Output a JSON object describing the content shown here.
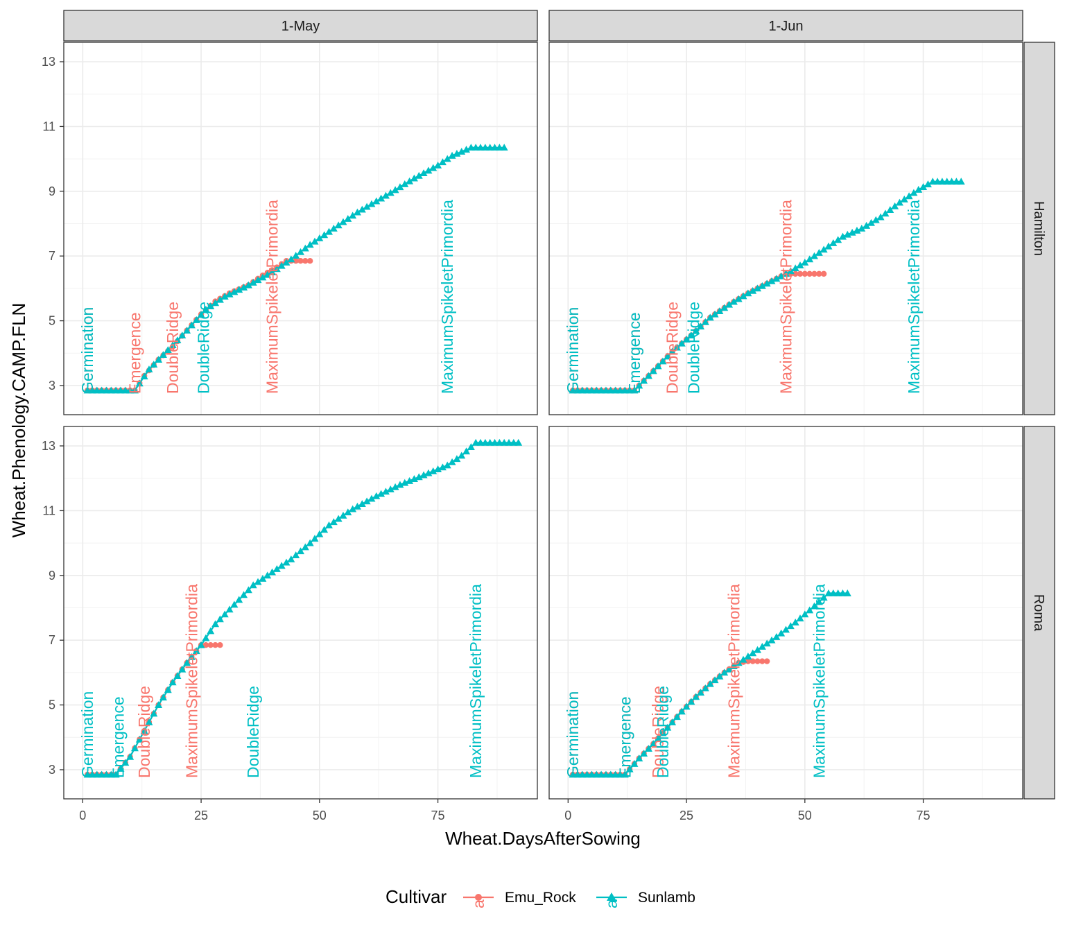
{
  "chart_data": {
    "type": "line",
    "xlabel": "Wheat.DaysAfterSowing",
    "ylabel": "Wheat.Phenology.CAMP.FLN",
    "xlim": [
      -4,
      96
    ],
    "ylim": [
      2.1,
      13.6
    ],
    "x_ticks": [
      0,
      25,
      50,
      75
    ],
    "y_ticks": [
      3,
      5,
      7,
      9,
      11,
      13
    ],
    "col_facets": [
      "1-May",
      "1-Jun"
    ],
    "row_facets": [
      "Hamilton",
      "Roma"
    ],
    "legend": {
      "title": "Cultivar",
      "position": "bottom",
      "key_glyph_text": "a",
      "entries": [
        {
          "name": "Emu_Rock",
          "color": "#F8766D",
          "marker": "circle"
        },
        {
          "name": "Sunlamb",
          "color": "#00BFC4",
          "marker": "triangle"
        }
      ]
    },
    "panels": [
      {
        "col": "1-May",
        "row": "Hamilton",
        "series": [
          {
            "name": "Emu_Rock",
            "points": [
              [
                1,
                2.85
              ],
              [
                11,
                2.85
              ],
              [
                13,
                3.3
              ],
              [
                16,
                3.8
              ],
              [
                19,
                4.2
              ],
              [
                22,
                4.7
              ],
              [
                25,
                5.2
              ],
              [
                28,
                5.6
              ],
              [
                31,
                5.85
              ],
              [
                35,
                6.1
              ],
              [
                38,
                6.4
              ],
              [
                41,
                6.65
              ],
              [
                43,
                6.85
              ],
              [
                48,
                6.85
              ]
            ],
            "stages": [
              {
                "label": "Germination",
                "x": 1
              },
              {
                "label": "Emergence",
                "x": 11
              },
              {
                "label": "DoubleRidge",
                "x": 19
              },
              {
                "label": "MaximumSpikeletPrimordia",
                "x": 40
              }
            ]
          },
          {
            "name": "Sunlamb",
            "points": [
              [
                1,
                2.85
              ],
              [
                11,
                2.85
              ],
              [
                14,
                3.5
              ],
              [
                18,
                4.1
              ],
              [
                22,
                4.7
              ],
              [
                26,
                5.35
              ],
              [
                30,
                5.75
              ],
              [
                35,
                6.1
              ],
              [
                40,
                6.5
              ],
              [
                44,
                6.9
              ],
              [
                48,
                7.35
              ],
              [
                53,
                7.85
              ],
              [
                58,
                8.35
              ],
              [
                65,
                8.95
              ],
              [
                70,
                9.4
              ],
              [
                75,
                9.8
              ],
              [
                78,
                10.1
              ],
              [
                82,
                10.35
              ],
              [
                89,
                10.35
              ]
            ],
            "stages": [
              {
                "label": "Germination",
                "x": 1
              },
              {
                "label": "DoubleRidge",
                "x": 25.5
              },
              {
                "label": "MaximumSpikeletPrimordia",
                "x": 77
              }
            ]
          }
        ]
      },
      {
        "col": "1-Jun",
        "row": "Hamilton",
        "series": [
          {
            "name": "Emu_Rock",
            "points": [
              [
                1,
                2.85
              ],
              [
                14,
                2.85
              ],
              [
                18,
                3.45
              ],
              [
                22,
                4.05
              ],
              [
                26,
                4.55
              ],
              [
                30,
                5.1
              ],
              [
                34,
                5.5
              ],
              [
                38,
                5.85
              ],
              [
                42,
                6.15
              ],
              [
                46,
                6.45
              ],
              [
                54,
                6.45
              ]
            ],
            "stages": [
              {
                "label": "Germination",
                "x": 1
              },
              {
                "label": "Emergence",
                "x": 14
              },
              {
                "label": "DoubleRidge",
                "x": 22
              },
              {
                "label": "MaximumSpikeletPrimordia",
                "x": 46
              }
            ]
          },
          {
            "name": "Sunlamb",
            "points": [
              [
                1,
                2.85
              ],
              [
                14,
                2.85
              ],
              [
                18,
                3.45
              ],
              [
                22,
                4.05
              ],
              [
                26,
                4.55
              ],
              [
                30,
                5.1
              ],
              [
                34,
                5.5
              ],
              [
                38,
                5.85
              ],
              [
                42,
                6.15
              ],
              [
                46,
                6.45
              ],
              [
                50,
                6.8
              ],
              [
                54,
                7.2
              ],
              [
                58,
                7.6
              ],
              [
                62,
                7.85
              ],
              [
                66,
                8.2
              ],
              [
                70,
                8.65
              ],
              [
                74,
                9.05
              ],
              [
                77,
                9.3
              ],
              [
                83,
                9.3
              ]
            ],
            "stages": [
              {
                "label": "Germination",
                "x": 1
              },
              {
                "label": "Emergence",
                "x": 14
              },
              {
                "label": "DoubleRidge",
                "x": 26.5
              },
              {
                "label": "MaximumSpikeletPrimordia",
                "x": 73
              }
            ]
          }
        ]
      },
      {
        "col": "1-May",
        "row": "Roma",
        "series": [
          {
            "name": "Emu_Rock",
            "points": [
              [
                1,
                2.85
              ],
              [
                7,
                2.85
              ],
              [
                10,
                3.4
              ],
              [
                13,
                4.2
              ],
              [
                16,
                5.0
              ],
              [
                19,
                5.7
              ],
              [
                22,
                6.3
              ],
              [
                25,
                6.85
              ],
              [
                29,
                6.85
              ]
            ],
            "stages": [
              {
                "label": "DoubleRidge",
                "x": 13
              },
              {
                "label": "MaximumSpikeletPrimordia",
                "x": 23
              }
            ]
          },
          {
            "name": "Sunlamb",
            "points": [
              [
                1,
                2.85
              ],
              [
                7,
                2.85
              ],
              [
                10,
                3.4
              ],
              [
                13,
                4.2
              ],
              [
                16,
                5.0
              ],
              [
                19,
                5.7
              ],
              [
                22,
                6.3
              ],
              [
                25,
                6.85
              ],
              [
                28,
                7.5
              ],
              [
                32,
                8.1
              ],
              [
                36,
                8.7
              ],
              [
                40,
                9.1
              ],
              [
                44,
                9.5
              ],
              [
                48,
                10.0
              ],
              [
                52,
                10.55
              ],
              [
                57,
                11.05
              ],
              [
                62,
                11.45
              ],
              [
                67,
                11.8
              ],
              [
                72,
                12.1
              ],
              [
                77,
                12.4
              ],
              [
                80,
                12.7
              ],
              [
                83,
                13.1
              ],
              [
                92,
                13.1
              ]
            ],
            "stages": [
              {
                "label": "Germination",
                "x": 1
              },
              {
                "label": "Emergence",
                "x": 7.5
              },
              {
                "label": "DoubleRidge",
                "x": 36
              },
              {
                "label": "MaximumSpikeletPrimordia",
                "x": 83
              }
            ]
          }
        ]
      },
      {
        "col": "1-Jun",
        "row": "Roma",
        "series": [
          {
            "name": "Emu_Rock",
            "points": [
              [
                1,
                2.85
              ],
              [
                12,
                2.85
              ],
              [
                15,
                3.35
              ],
              [
                18,
                3.8
              ],
              [
                21,
                4.3
              ],
              [
                24,
                4.8
              ],
              [
                27,
                5.25
              ],
              [
                30,
                5.65
              ],
              [
                33,
                6.0
              ],
              [
                36,
                6.3
              ],
              [
                38,
                6.35
              ],
              [
                42,
                6.35
              ]
            ],
            "stages": [
              {
                "label": "Germination",
                "x": 1
              },
              {
                "label": "Emergence",
                "x": 12
              },
              {
                "label": "DoubleRidge",
                "x": 19
              },
              {
                "label": "MaximumSpikeletPrimordia",
                "x": 35
              }
            ]
          },
          {
            "name": "Sunlamb",
            "points": [
              [
                1,
                2.85
              ],
              [
                12,
                2.85
              ],
              [
                15,
                3.35
              ],
              [
                18,
                3.8
              ],
              [
                21,
                4.3
              ],
              [
                24,
                4.8
              ],
              [
                27,
                5.25
              ],
              [
                30,
                5.65
              ],
              [
                33,
                6.0
              ],
              [
                36,
                6.3
              ],
              [
                40,
                6.7
              ],
              [
                44,
                7.1
              ],
              [
                48,
                7.55
              ],
              [
                52,
                8.05
              ],
              [
                55,
                8.45
              ],
              [
                59,
                8.45
              ]
            ],
            "stages": [
              {
                "label": "Germination",
                "x": 1
              },
              {
                "label": "Emergence",
                "x": 12
              },
              {
                "label": "DoubleRidge",
                "x": 20
              },
              {
                "label": "MaximumSpikeletPrimordia",
                "x": 53
              }
            ]
          }
        ]
      }
    ]
  }
}
